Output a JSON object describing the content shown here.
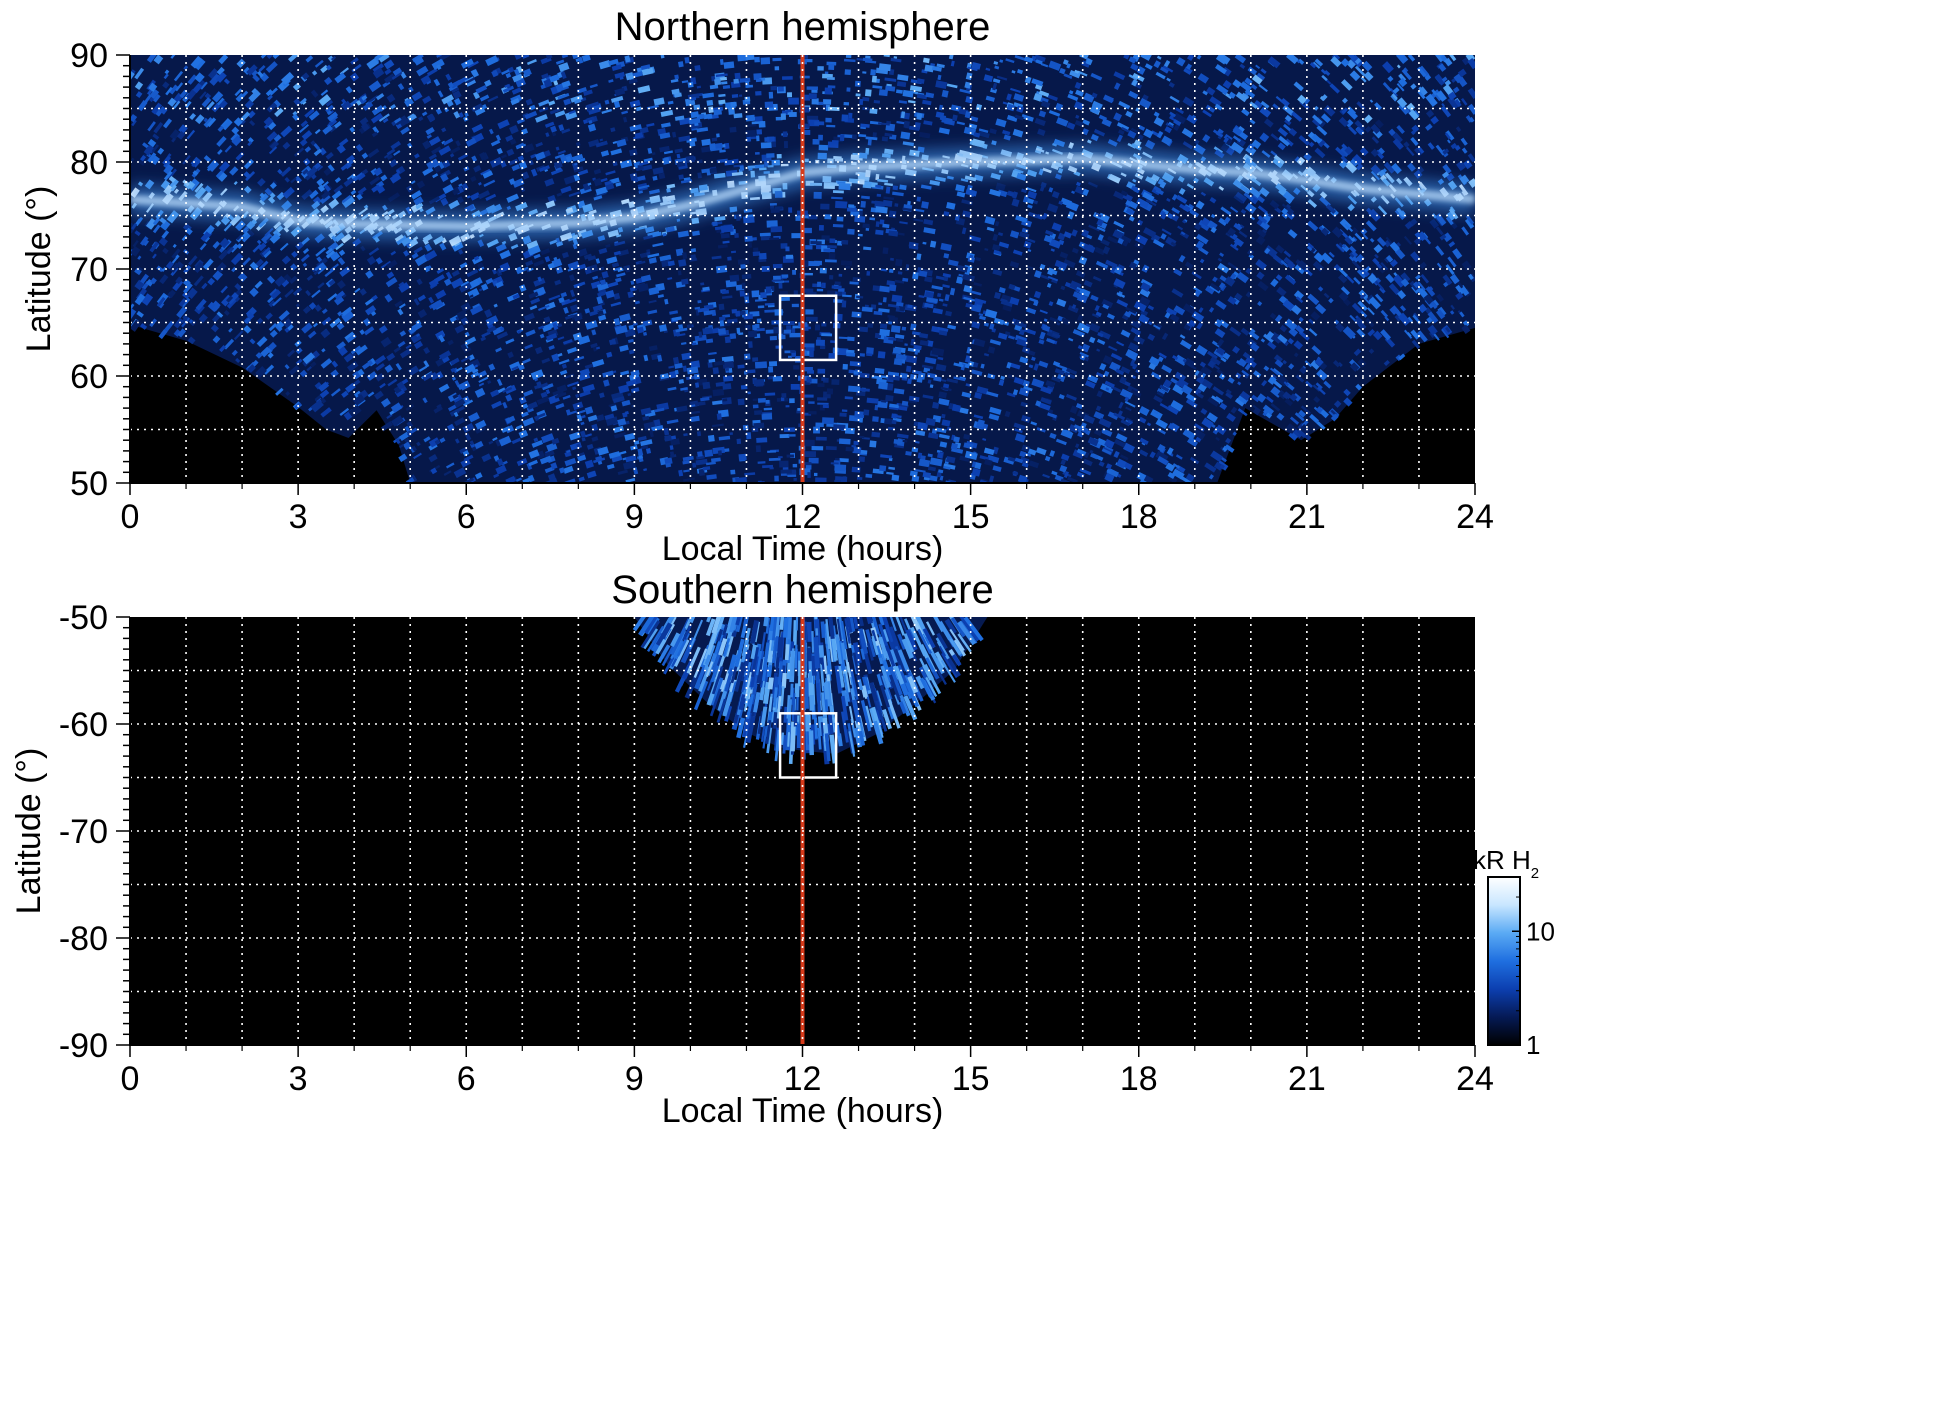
{
  "chart_data": [
    {
      "type": "heatmap",
      "title": "Northern hemisphere",
      "xlabel": "Local Time (hours)",
      "ylabel": "Latitude (°)",
      "xlim": [
        0,
        24
      ],
      "ylim": [
        50,
        90
      ],
      "x_ticks": [
        "0",
        "3",
        "6",
        "9",
        "12",
        "15",
        "18",
        "21",
        "24"
      ],
      "y_ticks": [
        "50",
        "60",
        "70",
        "80",
        "90"
      ],
      "grid": true,
      "highlight_line": {
        "x": 12,
        "color": "#d63a1a"
      },
      "highlight_box": {
        "x": [
          11.6,
          12.6
        ],
        "y": [
          61.5,
          67.5
        ]
      },
      "features": [
        {
          "kind": "main-oval",
          "points": [
            [
              0,
              76.5
            ],
            [
              2,
              75.8
            ],
            [
              3,
              74.5
            ],
            [
              4,
              74.2
            ],
            [
              6,
              74.0
            ],
            [
              8,
              74.3
            ],
            [
              9,
              74.8
            ],
            [
              10,
              76.0
            ],
            [
              11,
              77.5
            ],
            [
              12,
              79.0
            ],
            [
              13,
              79.5
            ],
            [
              15,
              80.0
            ],
            [
              17,
              80.3
            ],
            [
              18,
              79.8
            ],
            [
              19,
              79.3
            ],
            [
              20,
              79.0
            ],
            [
              21,
              78.3
            ],
            [
              22,
              77.5
            ],
            [
              23,
              77.0
            ],
            [
              24,
              76.5
            ]
          ]
        }
      ],
      "coverage_lower_edge": [
        [
          0,
          64.8
        ],
        [
          1,
          63.3
        ],
        [
          2,
          60.8
        ],
        [
          3,
          57.1
        ],
        [
          3.5,
          55.0
        ],
        [
          3.9,
          54.2
        ],
        [
          4.4,
          56.8
        ],
        [
          4.8,
          53.5
        ],
        [
          5.0,
          50
        ],
        [
          19.4,
          50
        ],
        [
          19.9,
          57.0
        ],
        [
          20.4,
          55.5
        ],
        [
          20.9,
          54.0
        ],
        [
          21.5,
          56.0
        ],
        [
          22.0,
          59.0
        ],
        [
          23.0,
          63.0
        ],
        [
          24,
          64.5
        ]
      ]
    },
    {
      "type": "heatmap",
      "title": "Southern hemisphere",
      "xlabel": "Local Time (hours)",
      "ylabel": "Latitude (°)",
      "xlim": [
        0,
        24
      ],
      "ylim": [
        -90,
        -50
      ],
      "x_ticks": [
        "0",
        "3",
        "6",
        "9",
        "12",
        "15",
        "18",
        "21",
        "24"
      ],
      "y_ticks": [
        "-50",
        "-60",
        "-70",
        "-80",
        "-90"
      ],
      "grid": true,
      "highlight_line": {
        "x": 12,
        "color": "#d63a1a"
      },
      "highlight_box": {
        "x": [
          11.6,
          12.6
        ],
        "y": [
          -65,
          -59
        ]
      },
      "coverage_region": [
        [
          9.0,
          -50
        ],
        [
          9.6,
          -54.5
        ],
        [
          10.3,
          -58.0
        ],
        [
          11.0,
          -60.8
        ],
        [
          11.6,
          -62.2
        ],
        [
          12.0,
          -62.5
        ],
        [
          12.6,
          -62.8
        ],
        [
          13.3,
          -61.0
        ],
        [
          14.0,
          -58.2
        ],
        [
          14.7,
          -55.0
        ],
        [
          15.3,
          -50
        ]
      ]
    }
  ],
  "colorbar": {
    "label": "kR H",
    "label_sub": "2",
    "scale": "log",
    "range": [
      1,
      30
    ],
    "ticks": [
      "10",
      "1"
    ],
    "tick_values": [
      10,
      1
    ],
    "colors": [
      "#000000",
      "#051a55",
      "#0c3fb0",
      "#1f6fe0",
      "#5aaaf4",
      "#c8e6ff",
      "#ffffff"
    ]
  }
}
